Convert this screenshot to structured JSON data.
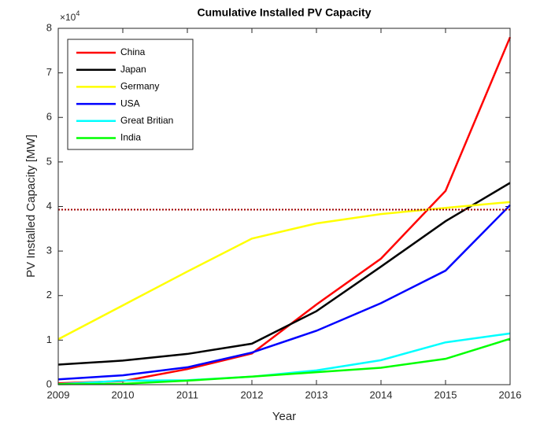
{
  "chart_data": {
    "type": "line",
    "title": "Cumulative Installed PV Capacity",
    "xlabel": "Year",
    "ylabel": "PV Installed Capacity [MW]",
    "y_multiplier": {
      "base": "×10",
      "exponent": "4"
    },
    "x": [
      2009,
      2010,
      2011,
      2012,
      2013,
      2014,
      2015,
      2016
    ],
    "series": [
      {
        "name": "China",
        "color": "#ff0000",
        "values": [
          300,
          800,
          3500,
          7000,
          18000,
          28300,
          43500,
          78000
        ]
      },
      {
        "name": "Japan",
        "color": "#000000",
        "values": [
          4500,
          5400,
          6900,
          9200,
          16500,
          26500,
          36700,
          45300
        ]
      },
      {
        "name": "Germany",
        "color": "#ffff00",
        "values": [
          10200,
          17800,
          25400,
          32800,
          36200,
          38300,
          39700,
          41000
        ]
      },
      {
        "name": "USA",
        "color": "#0000ff",
        "values": [
          1200,
          2100,
          3900,
          7200,
          12100,
          18300,
          25600,
          40300
        ]
      },
      {
        "name": "Great Britian",
        "color": "#00ffff",
        "values": [
          100,
          900,
          1000,
          1800,
          3200,
          5500,
          9500,
          11500
        ]
      },
      {
        "name": "India",
        "color": "#00ff00",
        "values": [
          100,
          200,
          900,
          1800,
          2800,
          3800,
          5800,
          10300
        ]
      }
    ],
    "reference_line": {
      "y": 39300,
      "color": "#a00000"
    },
    "xlim": [
      2009,
      2016
    ],
    "xticks": [
      2009,
      2010,
      2011,
      2012,
      2013,
      2014,
      2015,
      2016
    ],
    "ylim": [
      0,
      80000
    ],
    "yticks": [
      {
        "value": 0,
        "label": "0"
      },
      {
        "value": 10000,
        "label": "1"
      },
      {
        "value": 20000,
        "label": "2"
      },
      {
        "value": 30000,
        "label": "3"
      },
      {
        "value": 40000,
        "label": "4"
      },
      {
        "value": 50000,
        "label": "5"
      },
      {
        "value": 60000,
        "label": "6"
      },
      {
        "value": 70000,
        "label": "7"
      },
      {
        "value": 80000,
        "label": "8"
      }
    ],
    "legend": "upper left"
  }
}
